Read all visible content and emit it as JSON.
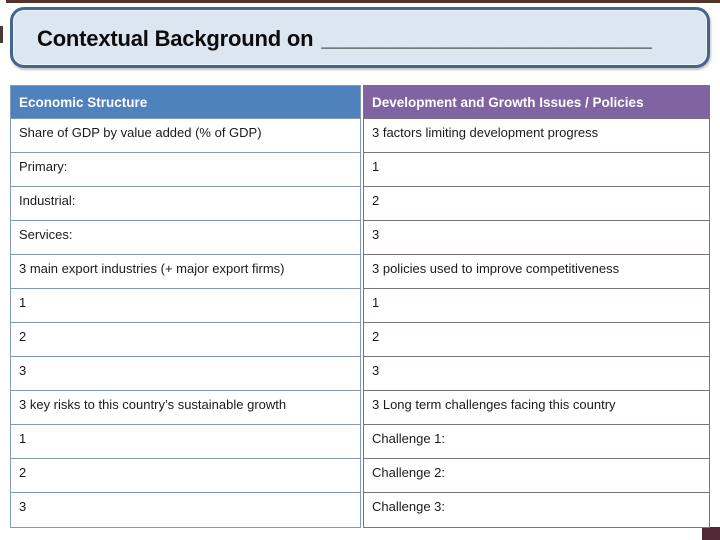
{
  "title": {
    "prefix": "Contextual Background on",
    "blank": "___________________________"
  },
  "table_left": {
    "header": "Economic Structure",
    "rows": [
      "Share of GDP by value added (% of GDP)",
      "Primary:",
      "Industrial:",
      "Services:",
      "3 main export industries (+ major export firms)",
      "1",
      "2",
      "3",
      "3 key risks to this country’s sustainable growth",
      "1",
      "2",
      "3"
    ]
  },
  "table_right": {
    "header": "Development and Growth Issues / Policies",
    "rows": [
      "3 factors limiting development progress",
      "1",
      "2",
      "3",
      "3 policies used to improve competitiveness",
      "1",
      "2",
      "3",
      "3 Long term challenges facing this country",
      "Challenge 1:",
      "Challenge 2:",
      "Challenge 3:"
    ]
  },
  "colors": {
    "left_header_bg": "#4f81bd",
    "right_header_bg": "#8064a2",
    "left_border": "#7e9cb4",
    "right_border": "#7e7084",
    "header_text": "#ffffff",
    "body_text": "#1b1b1b",
    "title_fill": "#dce6f1",
    "title_border": "#44658e",
    "frame_edge": "#53342a"
  }
}
